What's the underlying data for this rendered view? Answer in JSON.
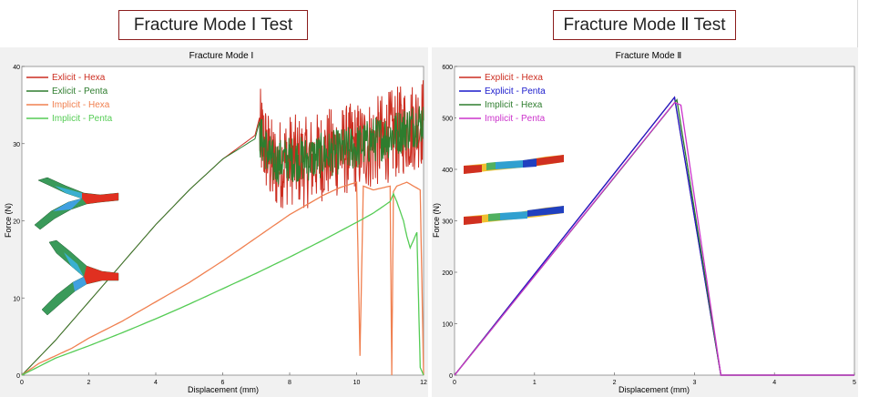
{
  "headings": {
    "left": "Fracture Mode Ⅰ Test",
    "right": "Fracture Mode Ⅱ Test"
  },
  "colors": {
    "panel_bg": "#f1f1f1",
    "title_border": "#8b1c1c",
    "explicit_hexa": "#cc2d20",
    "explicit_penta_mode1": "#2e7d2e",
    "implicit_hexa": "#f08050",
    "implicit_penta": "#55cc55",
    "explicit_penta_mode2": "#1a1acc",
    "implicit_hexa_mode2": "#2e7d2e",
    "implicit_penta_mode2": "#cc33cc"
  },
  "chart_data": [
    {
      "type": "line",
      "title": "Fracture Mode Ⅰ",
      "xlabel": "Displacement (mm)",
      "ylabel": "Force (N)",
      "xlim": [
        0,
        12
      ],
      "ylim": [
        0,
        40
      ],
      "xticks": [
        "0",
        "2",
        "4",
        "6",
        "8",
        "10",
        "12"
      ],
      "yticks": [
        "0",
        "10",
        "20",
        "30",
        "40"
      ],
      "grid": false,
      "legend": "top-left",
      "series": [
        {
          "name": "Exlicit - Hexa",
          "color": "#cc2d20",
          "x": [
            0,
            1,
            2,
            3,
            4,
            5,
            6,
            7.1,
            7.5,
            8,
            8.5,
            9,
            9.5,
            10,
            10.5,
            11,
            11.5,
            12
          ],
          "y": [
            0,
            4.5,
            9.5,
            14.5,
            19.5,
            24,
            28,
            31.5,
            27,
            28,
            27.5,
            28.5,
            29,
            29.5,
            30,
            31,
            32,
            33
          ],
          "noisy_from_x": 7.1,
          "noise_amplitude": 6
        },
        {
          "name": "Exlicit - Penta",
          "color": "#2e7d2e",
          "x": [
            0,
            1,
            2,
            3,
            4,
            5,
            6,
            7.1,
            7.5,
            8,
            8.5,
            9,
            9.5,
            10,
            10.5,
            11,
            11.5,
            12
          ],
          "y": [
            0,
            4.5,
            9.5,
            14.5,
            19.5,
            24,
            28,
            31,
            27.5,
            28,
            28,
            28.5,
            29,
            29.5,
            30.5,
            31,
            32,
            33
          ],
          "noisy_from_x": 7.1,
          "noise_amplitude": 3
        },
        {
          "name": "Implicit - Hexa",
          "color": "#f08050",
          "x": [
            0,
            0.5,
            1,
            1.5,
            2,
            3,
            4,
            5,
            6,
            7,
            8,
            9,
            9.5,
            10,
            10.1,
            10.2,
            10.5,
            11,
            11.05,
            11.1,
            11.2,
            11.5,
            11.9,
            12
          ],
          "y": [
            0,
            1.5,
            2.5,
            3.5,
            4.8,
            7,
            9.5,
            12,
            14.8,
            17.8,
            20.8,
            23.3,
            24.3,
            25,
            2.5,
            24.5,
            24,
            24.5,
            0,
            23.8,
            24.5,
            25,
            24,
            0
          ]
        },
        {
          "name": "Implicit - Penta",
          "color": "#55cc55",
          "x": [
            0,
            1,
            2,
            3,
            4,
            5,
            6,
            7,
            8,
            9,
            10,
            10.5,
            11,
            11.1,
            11.2,
            11.4,
            11.5,
            11.6,
            11.8,
            11.9,
            12
          ],
          "y": [
            0,
            2.2,
            3.8,
            5.5,
            7.3,
            9.2,
            11.2,
            13.2,
            15.3,
            17.5,
            19.8,
            21,
            22.5,
            23.5,
            22.5,
            20,
            18,
            16.5,
            18.5,
            1,
            0
          ]
        }
      ]
    },
    {
      "type": "line",
      "title": "Fracture Mode Ⅱ",
      "xlabel": "Displacement (mm)",
      "ylabel": "Force (N)",
      "xlim": [
        0,
        5
      ],
      "ylim": [
        0,
        600
      ],
      "xticks": [
        "0",
        "1",
        "2",
        "3",
        "4",
        "5"
      ],
      "yticks": [
        "0",
        "100",
        "200",
        "300",
        "400",
        "500",
        "600"
      ],
      "grid": false,
      "legend": "top-left",
      "series": [
        {
          "name": "Explicit - Hexa",
          "color": "#cc2d20",
          "x": [
            0,
            2.75,
            3.33,
            5
          ],
          "y": [
            0,
            540,
            0,
            0
          ]
        },
        {
          "name": "Explicit - Penta",
          "color": "#1a1acc",
          "x": [
            0,
            2.75,
            3.33,
            5
          ],
          "y": [
            0,
            540,
            0,
            0
          ]
        },
        {
          "name": "Implicit - Hexa",
          "color": "#2e7d2e",
          "x": [
            0,
            2.78,
            3.33,
            5
          ],
          "y": [
            0,
            535,
            0,
            0
          ]
        },
        {
          "name": "Implicit - Penta",
          "color": "#cc33cc",
          "x": [
            0,
            2.75,
            2.83,
            3.33,
            5
          ],
          "y": [
            0,
            530,
            525,
            0,
            0
          ]
        }
      ]
    }
  ]
}
